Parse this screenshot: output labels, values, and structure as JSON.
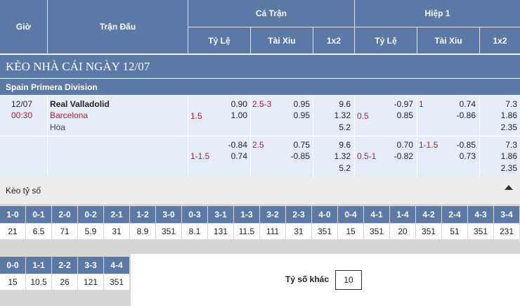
{
  "header": {
    "gio": "Giờ",
    "tran_dau": "Trận Đấu",
    "ca_tran": "Cá Trận",
    "hiep_1": "Hiệp 1",
    "ty_le": "Tỷ Lệ",
    "tai_xiu": "Tài Xiu",
    "x12": "1x2"
  },
  "title": "KÈO NHÀ CÁI NGÀY 12/07",
  "league": "Spain Primera Division",
  "match": {
    "date": "12/07",
    "time": "00:30",
    "home": "Real Valladolid",
    "away": "Barcelona",
    "draw": "Hòa",
    "rows": [
      {
        "ft_hdp_line": "1.5",
        "ft_hdp_home": "0.90",
        "ft_hdp_away": "1.00",
        "ft_ou_line": "2.5-3",
        "ft_ou_over": "0.95",
        "ft_ou_under": "0.95",
        "ft_1x2": [
          "9.6",
          "1.32",
          "5.2"
        ],
        "h1_hdp_line": "0.5",
        "h1_hdp_home": "-0.97",
        "h1_hdp_away": "0.85",
        "h1_ou_line": "1",
        "h1_ou_over": "0.74",
        "h1_ou_under": "-0.86",
        "h1_1x2": [
          "7.3",
          "1.86",
          "2.35"
        ]
      },
      {
        "ft_hdp_line": "1-1.5",
        "ft_hdp_home": "-0.84",
        "ft_hdp_away": "0.74",
        "ft_ou_line": "2.5",
        "ft_ou_over": "0.75",
        "ft_ou_under": "-0.85",
        "ft_1x2": [
          "9.6",
          "1.32",
          "5.2"
        ],
        "h1_hdp_line": "0.5-1",
        "h1_hdp_home": "0.70",
        "h1_hdp_away": "-0.82",
        "h1_ou_line": "1-1.5",
        "h1_ou_over": "-0.85",
        "h1_ou_under": "0.73",
        "h1_1x2": [
          "7.3",
          "1.86",
          "2.35"
        ]
      }
    ]
  },
  "score_section": {
    "title": "Kèo tỷ số",
    "row1": [
      {
        "score": "1-0",
        "odds": "21"
      },
      {
        "score": "0-1",
        "odds": "6.5"
      },
      {
        "score": "2-0",
        "odds": "71"
      },
      {
        "score": "0-2",
        "odds": "5.9"
      },
      {
        "score": "2-1",
        "odds": "31"
      },
      {
        "score": "1-2",
        "odds": "8.9"
      },
      {
        "score": "3-0",
        "odds": "351"
      },
      {
        "score": "0-3",
        "odds": "8.1"
      },
      {
        "score": "3-1",
        "odds": "131"
      },
      {
        "score": "1-3",
        "odds": "11.5"
      },
      {
        "score": "3-2",
        "odds": "111"
      },
      {
        "score": "2-3",
        "odds": "31"
      },
      {
        "score": "4-0",
        "odds": "351"
      },
      {
        "score": "0-4",
        "odds": "15"
      },
      {
        "score": "4-1",
        "odds": "351"
      },
      {
        "score": "1-4",
        "odds": "20"
      },
      {
        "score": "4-2",
        "odds": "351"
      },
      {
        "score": "2-4",
        "odds": "51"
      },
      {
        "score": "4-3",
        "odds": "351"
      },
      {
        "score": "3-4",
        "odds": "231"
      }
    ],
    "row2": [
      {
        "score": "0-0",
        "odds": "15"
      },
      {
        "score": "1-1",
        "odds": "10.5"
      },
      {
        "score": "2-2",
        "odds": "26"
      },
      {
        "score": "3-3",
        "odds": "121"
      },
      {
        "score": "4-4",
        "odds": "351"
      }
    ],
    "other_label": "Tỷ số khác",
    "other_value": "10"
  }
}
